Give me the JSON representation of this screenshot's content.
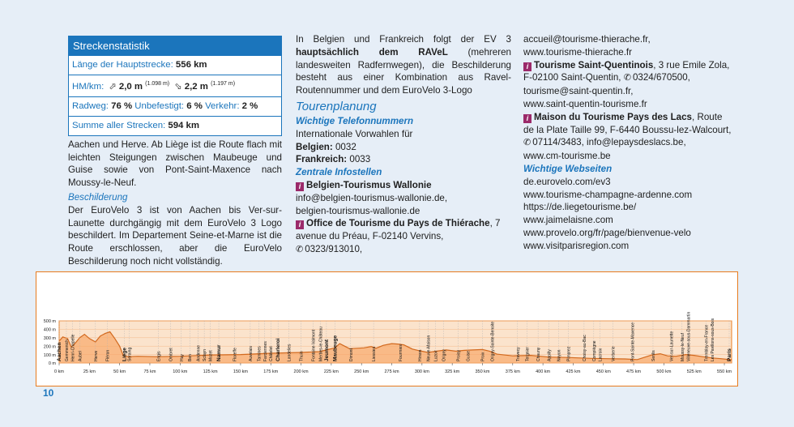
{
  "stats": {
    "title": "Streckenstatistik",
    "main_length_label": "Länge der Hauptstrecke:",
    "main_length_value": "556 km",
    "hm_label": "HM/km:",
    "ascent": "2,0 m",
    "ascent_total": "(1.098 m)",
    "descent": "2,2 m",
    "descent_total": "(1.197 m)",
    "radweg_label": "Radweg:",
    "radweg_value": "76 %",
    "unbefestigt_label": "Unbefestigt:",
    "unbefestigt_value": "6 %",
    "verkehr_label": "Verkehr:",
    "verkehr_value": "2 %",
    "sum_label": "Summe aller Strecken:",
    "sum_value": "594 km"
  },
  "col1": {
    "intro": "Aachen und Herve. Ab Liège ist die Route flach mit leichten Steigungen zwischen Maubeuge und Guise sowie von Pont-Saint-Maxence nach Moussy-le-Neuf.",
    "beschilderung_h": "Beschilderung",
    "beschilderung_text": "Der EuroVelo 3 ist von Aachen bis Ver-sur-Launette durchgängig mit dem EuroVelo 3 Logo beschildert. Im Departement Seine-et-Marne ist die Route erschlossen, aber die EuroVelo Beschilderung noch nicht vollständig."
  },
  "col2": {
    "p1_a": "In Belgien und Frankreich folgt der EV 3 ",
    "p1_b": "hauptsächlich dem RAVeL",
    "p1_c": " (mehreren landesweiten Radfernwegen), die Beschilderung besteht aus einer Kombination aus Ravel-Routennummer und dem EuroVelo 3-Logo",
    "tourenplanung": "Tourenplanung",
    "telefon_h": "Wichtige Telefonnummern",
    "vorwahl": "Internationale Vorwahlen für",
    "belgien_label": "Belgien:",
    "belgien_value": "0032",
    "frankreich_label": "Frankreich:",
    "frankreich_value": "0033",
    "infostellen_h": "Zentrale Infostellen",
    "wallonie_name": "Belgien-Tourismus Wallonie",
    "wallonie_email": "info@belgien-tourismus-wallonie.de,",
    "wallonie_web": "belgien-tourismus-wallonie.de",
    "thierache_name": "Office de Tourisme du Pays de Thiérache",
    "thierache_addr": ", 7 avenue du Préau, F-02140 Vervins, ",
    "thierache_phone": "0323/913010,"
  },
  "col3": {
    "l1": "accueil@tourisme-thierache.fr,",
    "l2": "www.tourisme-thierache.fr",
    "stq_name": "Tourisme Saint-Quentinois",
    "stq_addr": ", 3 rue Emile Zola, F-02100 Saint-Quentin, ",
    "stq_phone": "0324/670500,",
    "stq_email": "tourisme@saint-quentin.fr,",
    "stq_web": "www.saint-quentin-tourisme.fr",
    "lacs_name": "Maison du Tourisme Pays des Lacs",
    "lacs_addr": ", Route de la Plate Taille 99, F-6440 Boussu-lez-Walcourt,",
    "lacs_phone": "07114/3483, info@lepaysdeslacs.be,",
    "lacs_web": "www.cm-tourisme.be",
    "web_h": "Wichtige Webseiten",
    "w1": "de.eurovelo.com/ev3",
    "w2": "www.tourisme-champagne-ardenne.com",
    "w3": "https://de.liegetourisme.be/",
    "w4": "www.jaimelaisne.com",
    "w5": "www.provelo.org/fr/page/bienvenue-velo",
    "w6": "www.visitparisregion.com"
  },
  "page_number": "10",
  "chart_data": {
    "type": "area",
    "title": "",
    "xlabel": "",
    "ylabel": "",
    "xlim": [
      0,
      556
    ],
    "ylim": [
      0,
      500
    ],
    "x_unit": "km",
    "y_unit": "m",
    "x_ticks": [
      "0 km",
      "25 km",
      "50 km",
      "75 km",
      "100 km",
      "125 km",
      "150 km",
      "175 km",
      "200 km",
      "225 km",
      "250 km",
      "275 km",
      "300 km",
      "325 km",
      "350 km",
      "375 km",
      "400 km",
      "425 km",
      "450 km",
      "475 km",
      "500 km",
      "525 km",
      "550 km"
    ],
    "y_ticks": [
      "500 m",
      "400 m",
      "300 m",
      "200 m",
      "100 m",
      "0 m"
    ],
    "profile": [
      [
        0,
        260
      ],
      [
        3,
        310
      ],
      [
        7,
        290
      ],
      [
        10,
        190
      ],
      [
        13,
        230
      ],
      [
        17,
        300
      ],
      [
        21,
        340
      ],
      [
        25,
        290
      ],
      [
        30,
        250
      ],
      [
        34,
        320
      ],
      [
        38,
        350
      ],
      [
        42,
        370
      ],
      [
        46,
        290
      ],
      [
        50,
        200
      ],
      [
        53,
        90
      ],
      [
        57,
        75
      ],
      [
        65,
        80
      ],
      [
        80,
        75
      ],
      [
        100,
        80
      ],
      [
        125,
        95
      ],
      [
        150,
        100
      ],
      [
        175,
        115
      ],
      [
        200,
        125
      ],
      [
        215,
        135
      ],
      [
        228,
        180
      ],
      [
        232,
        230
      ],
      [
        236,
        200
      ],
      [
        240,
        170
      ],
      [
        246,
        175
      ],
      [
        252,
        180
      ],
      [
        258,
        195
      ],
      [
        262,
        175
      ],
      [
        268,
        210
      ],
      [
        275,
        230
      ],
      [
        280,
        225
      ],
      [
        285,
        215
      ],
      [
        292,
        165
      ],
      [
        298,
        145
      ],
      [
        305,
        125
      ],
      [
        312,
        140
      ],
      [
        320,
        155
      ],
      [
        328,
        140
      ],
      [
        335,
        150
      ],
      [
        342,
        155
      ],
      [
        350,
        160
      ],
      [
        356,
        140
      ],
      [
        362,
        105
      ],
      [
        375,
        85
      ],
      [
        390,
        90
      ],
      [
        405,
        70
      ],
      [
        420,
        65
      ],
      [
        440,
        55
      ],
      [
        458,
        50
      ],
      [
        468,
        48
      ],
      [
        478,
        40
      ],
      [
        490,
        95
      ],
      [
        497,
        110
      ],
      [
        503,
        85
      ],
      [
        510,
        80
      ],
      [
        518,
        100
      ],
      [
        525,
        90
      ],
      [
        532,
        75
      ],
      [
        540,
        60
      ],
      [
        548,
        50
      ],
      [
        556,
        38
      ]
    ],
    "places": [
      {
        "km": 0,
        "name": "Aachen",
        "bold": true
      },
      {
        "km": 6,
        "name": "Gemmenich"
      },
      {
        "km": 11,
        "name": "Henri-Chapelle"
      },
      {
        "km": 17,
        "name": "Aubel"
      },
      {
        "km": 30,
        "name": "Herve"
      },
      {
        "km": 40,
        "name": "Fléron"
      },
      {
        "km": 54,
        "name": "Liège",
        "bold": true
      },
      {
        "km": 58,
        "name": "Seraing"
      },
      {
        "km": 82,
        "name": "Engis"
      },
      {
        "km": 92,
        "name": "Ombret"
      },
      {
        "km": 101,
        "name": "Huy"
      },
      {
        "km": 108,
        "name": "Ben"
      },
      {
        "km": 115,
        "name": "Andenne"
      },
      {
        "km": 120,
        "name": "Sclayn"
      },
      {
        "km": 125,
        "name": "Mozet"
      },
      {
        "km": 132,
        "name": "Namur",
        "bold": true
      },
      {
        "km": 145,
        "name": "Floreffe"
      },
      {
        "km": 158,
        "name": "Auvelais"
      },
      {
        "km": 165,
        "name": "Tamines"
      },
      {
        "km": 170,
        "name": "Farciennes"
      },
      {
        "km": 175,
        "name": "Châtelet"
      },
      {
        "km": 181,
        "name": "Charleroi",
        "bold": true
      },
      {
        "km": 190,
        "name": "Landelies"
      },
      {
        "km": 200,
        "name": "Thuin"
      },
      {
        "km": 210,
        "name": "Fontaine-Valmont"
      },
      {
        "km": 216,
        "name": "Merbes-le-Château"
      },
      {
        "km": 221,
        "name": "Jeumont",
        "bold": true
      },
      {
        "km": 228,
        "name": "Maubeuge",
        "bold": true
      },
      {
        "km": 241,
        "name": "Dimont"
      },
      {
        "km": 260,
        "name": "Liessies"
      },
      {
        "km": 282,
        "name": "Fourmies"
      },
      {
        "km": 298,
        "name": "Hirson"
      },
      {
        "km": 305,
        "name": "Neuve-Maison"
      },
      {
        "km": 311,
        "name": "Luzoir"
      },
      {
        "km": 318,
        "name": "Origny"
      },
      {
        "km": 330,
        "name": "Proisy"
      },
      {
        "km": 338,
        "name": "Guise"
      },
      {
        "km": 350,
        "name": "Proix"
      },
      {
        "km": 358,
        "name": "Origny-Sainte-Benoite"
      },
      {
        "km": 379,
        "name": "Travecy"
      },
      {
        "km": 387,
        "name": "Tergnier"
      },
      {
        "km": 396,
        "name": "Chauny"
      },
      {
        "km": 405,
        "name": "Appilly"
      },
      {
        "km": 413,
        "name": "Noyon"
      },
      {
        "km": 421,
        "name": "Pimprez"
      },
      {
        "km": 434,
        "name": "Choisy-au-Bac"
      },
      {
        "km": 442,
        "name": "Compiègne"
      },
      {
        "km": 447,
        "name": "Lacroix"
      },
      {
        "km": 458,
        "name": "Verberie"
      },
      {
        "km": 474,
        "name": "Pont-Sainte-Maxence"
      },
      {
        "km": 491,
        "name": "Senlis"
      },
      {
        "km": 506,
        "name": "Ver-sur-Launette"
      },
      {
        "km": 515,
        "name": "Moussy-le-Neuf"
      },
      {
        "km": 520,
        "name": "Villeneuve-sous-Dammartin"
      },
      {
        "km": 535,
        "name": "Tremblay-en-France"
      },
      {
        "km": 540,
        "name": "Les Pavillons-sous-Bois"
      },
      {
        "km": 554,
        "name": "Paris",
        "bold": true
      }
    ]
  }
}
